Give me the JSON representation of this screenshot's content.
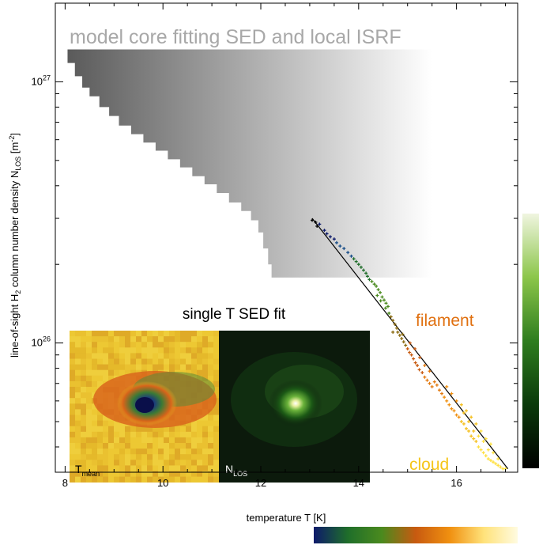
{
  "chart_data": {
    "type": "scatter",
    "title": "",
    "xlabel": "temperature T [K]",
    "ylabel": {
      "prefix": "line-of-sight H",
      "sub1": "2",
      "mid": " column number density N",
      "sub2": "LOS",
      "suffix": " [m",
      "sup": "-2",
      "end": "]"
    },
    "xlim": [
      7.8,
      17.25
    ],
    "ylim": [
      3.2e+25,
      2e+27
    ],
    "yscale": "log",
    "x_ticks": [
      8,
      10,
      12,
      14,
      16
    ],
    "x_tick_labels": [
      "8",
      "10",
      "12",
      "14",
      "16"
    ],
    "y_ticks": [
      {
        "value": 1e+26,
        "base": "10",
        "exp": "26"
      },
      {
        "value": 1e+27,
        "base": "10",
        "exp": "27"
      }
    ],
    "annotations": {
      "model_region": "model core fitting SED and local ISRF",
      "sed_fit": "single T SED fit",
      "filament": "filament",
      "cloud": "cloud"
    },
    "inset_labels": {
      "left_main": "T",
      "left_sub": "mean",
      "right_main": "N",
      "right_sub": "LOS"
    },
    "fit_line": {
      "x": [
        13.05,
        17.05
      ],
      "y": [
        3e+26,
        3.3e+25
      ]
    },
    "model_region_steps": [
      {
        "t": 8.05,
        "n": 1.3e+27
      },
      {
        "t": 8.2,
        "n": 1.18e+27
      },
      {
        "t": 8.35,
        "n": 1.05e+27
      },
      {
        "t": 8.5,
        "n": 9.5e+26
      },
      {
        "t": 8.7,
        "n": 8.8e+26
      },
      {
        "t": 8.9,
        "n": 8e+26
      },
      {
        "t": 9.1,
        "n": 7.4e+26
      },
      {
        "t": 9.35,
        "n": 6.8e+26
      },
      {
        "t": 9.6,
        "n": 6.3e+26
      },
      {
        "t": 9.85,
        "n": 5.85e+26
      },
      {
        "t": 10.1,
        "n": 5.45e+26
      },
      {
        "t": 10.35,
        "n": 5.05e+26
      },
      {
        "t": 10.6,
        "n": 4.7e+26
      },
      {
        "t": 10.85,
        "n": 4.35e+26
      },
      {
        "t": 11.1,
        "n": 4.05e+26
      },
      {
        "t": 11.35,
        "n": 3.75e+26
      },
      {
        "t": 11.6,
        "n": 3.45e+26
      },
      {
        "t": 11.8,
        "n": 3.2e+26
      },
      {
        "t": 11.95,
        "n": 2.95e+26
      },
      {
        "t": 12.05,
        "n": 2.65e+26
      },
      {
        "t": 12.15,
        "n": 2.3e+26
      },
      {
        "t": 12.22,
        "n": 2e+26
      }
    ],
    "model_region_right": 15.5,
    "model_region_bottom": 1.78e+26,
    "model_region_top": 1.33e+27,
    "series": [
      {
        "points": [
          [
            13.05,
            2.95e+26
          ],
          [
            13.12,
            2.9e+26
          ],
          [
            13.2,
            2.85e+26
          ],
          [
            13.15,
            2.8e+26
          ],
          [
            13.3,
            2.7e+26
          ],
          [
            13.35,
            2.62e+26
          ],
          [
            13.42,
            2.55e+26
          ],
          [
            13.5,
            2.5e+26
          ],
          [
            13.55,
            2.42e+26
          ],
          [
            13.62,
            2.35e+26
          ],
          [
            13.7,
            2.3e+26
          ],
          [
            13.78,
            2.22e+26
          ],
          [
            13.85,
            2.15e+26
          ],
          [
            13.9,
            2.1e+26
          ],
          [
            13.95,
            2.05e+26
          ],
          [
            14.0,
            2e+26
          ],
          [
            14.05,
            1.95e+26
          ],
          [
            14.1,
            1.9e+26
          ],
          [
            14.15,
            1.85e+26
          ],
          [
            14.18,
            1.8e+26
          ],
          [
            14.22,
            1.75e+26
          ],
          [
            14.27,
            1.72e+26
          ],
          [
            14.32,
            1.68e+26
          ],
          [
            14.36,
            1.65e+26
          ],
          [
            14.4,
            1.6e+26
          ],
          [
            14.44,
            1.56e+26
          ],
          [
            14.48,
            1.5e+26
          ],
          [
            14.52,
            1.46e+26
          ],
          [
            14.56,
            1.42e+26
          ],
          [
            14.6,
            1.38e+26
          ],
          [
            14.38,
            1.52e+26
          ],
          [
            14.45,
            1.45e+26
          ],
          [
            14.55,
            1.36e+26
          ],
          [
            14.62,
            1.3e+26
          ],
          [
            14.66,
            1.26e+26
          ],
          [
            14.7,
            1.22e+26
          ],
          [
            14.74,
            1.18e+26
          ],
          [
            14.78,
            1.14e+26
          ],
          [
            14.8,
            1.1e+26
          ],
          [
            14.84,
            1.07e+26
          ],
          [
            14.88,
            1.04e+26
          ],
          [
            14.92,
            1.01e+26
          ],
          [
            14.96,
            9.8e+25
          ],
          [
            15.0,
            9.5e+25
          ],
          [
            15.04,
            9.2e+25
          ],
          [
            15.08,
            9e+25
          ],
          [
            15.12,
            8.7e+25
          ],
          [
            15.16,
            8.4e+25
          ],
          [
            15.2,
            8.2e+25
          ],
          [
            15.24,
            7.9e+25
          ],
          [
            15.3,
            7.7e+25
          ],
          [
            15.35,
            7.4e+25
          ],
          [
            15.4,
            7.2e+25
          ],
          [
            15.45,
            7e+25
          ],
          [
            15.5,
            6.8e+25
          ],
          [
            14.9,
            1.08e+26
          ],
          [
            15.05,
            1e+26
          ],
          [
            15.15,
            9.5e+25
          ],
          [
            15.25,
            8.8e+25
          ],
          [
            14.7,
            1.1e+26
          ],
          [
            15.35,
            8.2e+25
          ],
          [
            15.45,
            7.8e+25
          ],
          [
            15.55,
            7.1e+25
          ],
          [
            15.6,
            6.9e+25
          ],
          [
            15.65,
            6.6e+25
          ],
          [
            15.7,
            6.4e+25
          ],
          [
            15.75,
            6.2e+25
          ],
          [
            15.8,
            6e+25
          ],
          [
            15.85,
            5.8e+25
          ],
          [
            15.9,
            5.6e+25
          ],
          [
            15.95,
            5.5e+25
          ],
          [
            16.0,
            5.3e+25
          ],
          [
            16.05,
            5.2e+25
          ],
          [
            16.1,
            5e+25
          ],
          [
            16.15,
            4.9e+25
          ],
          [
            16.2,
            4.7e+25
          ],
          [
            16.25,
            4.6e+25
          ],
          [
            16.3,
            4.4e+25
          ],
          [
            16.35,
            4.3e+25
          ],
          [
            16.4,
            4.2e+25
          ],
          [
            15.8,
            6.8e+25
          ],
          [
            15.9,
            6.4e+25
          ],
          [
            16.0,
            6e+25
          ],
          [
            16.1,
            5.8e+25
          ],
          [
            16.2,
            5.5e+25
          ],
          [
            16.3,
            5.2e+25
          ],
          [
            16.4,
            4.9e+25
          ],
          [
            16.5,
            4.6e+25
          ],
          [
            16.6,
            4.3e+25
          ],
          [
            16.7,
            4.1e+25
          ],
          [
            16.45,
            4e+25
          ],
          [
            16.5,
            3.9e+25
          ],
          [
            16.55,
            3.8e+25
          ],
          [
            16.6,
            3.7e+25
          ],
          [
            16.65,
            3.6e+25
          ],
          [
            16.7,
            3.55e+25
          ],
          [
            16.75,
            3.5e+25
          ],
          [
            16.8,
            3.45e+25
          ],
          [
            16.85,
            3.4e+25
          ],
          [
            16.9,
            3.35e+25
          ],
          [
            16.95,
            3.3e+25
          ],
          [
            17.0,
            3.3e+25
          ],
          [
            16.35,
            4.6e+25
          ],
          [
            16.45,
            4.4e+25
          ],
          [
            16.55,
            4.2e+25
          ],
          [
            16.65,
            3.9e+25
          ],
          [
            16.75,
            3.8e+25
          ],
          [
            16.85,
            3.6e+25
          ],
          [
            16.25,
            5e+25
          ],
          [
            16.15,
            5.4e+25
          ]
        ]
      }
    ],
    "colorbar_vertical": {
      "colors": [
        "#000000",
        "#0a3a0a",
        "#2e7d1e",
        "#8cc64a",
        "#f0f5e0"
      ]
    },
    "colorbar_horizontal": {
      "colors": [
        "#0d1a6b",
        "#1f6e2a",
        "#4a8a1e",
        "#c85a10",
        "#f09010",
        "#ffe27a",
        "#fffbe0"
      ]
    },
    "point_colormap": [
      "#000000",
      "#0d1a6b",
      "#1a4f8a",
      "#1f6e2a",
      "#4a8a1e",
      "#8a6a10",
      "#c85a10",
      "#e37a10",
      "#f09010",
      "#f5c020",
      "#ffe040"
    ]
  }
}
